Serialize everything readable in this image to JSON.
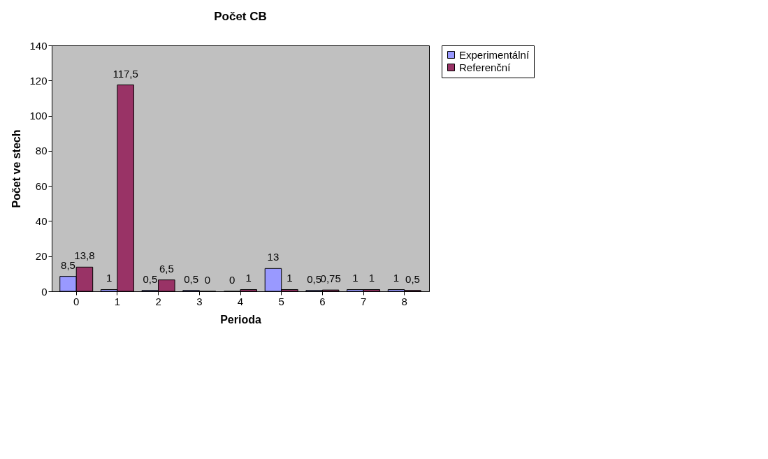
{
  "chart_data": {
    "type": "bar",
    "title": "Počet CB",
    "xlabel": "Perioda",
    "ylabel": "Počet ve stech",
    "categories": [
      "0",
      "1",
      "2",
      "3",
      "4",
      "5",
      "6",
      "7",
      "8"
    ],
    "series": [
      {
        "name": "Experimentální",
        "color": "#9999ff",
        "values": [
          8.5,
          1,
          0.5,
          0.5,
          0,
          13,
          0.5,
          1,
          1
        ],
        "value_labels": [
          "8,5",
          "1",
          "0,5",
          "0,5",
          "0",
          "13",
          "0,5",
          "1",
          "1"
        ]
      },
      {
        "name": "Referenční",
        "color": "#993366",
        "values": [
          13.8,
          117.5,
          6.5,
          0,
          1,
          1,
          0.75,
          1,
          0.5
        ],
        "value_labels": [
          "13,8",
          "117,5",
          "6,5",
          "0",
          "1",
          "1",
          "0,75",
          "1",
          "0,5"
        ]
      }
    ],
    "ylim": [
      0,
      140
    ],
    "yticks": [
      0,
      20,
      40,
      60,
      80,
      100,
      120,
      140
    ],
    "grid": false,
    "legend": "right"
  }
}
